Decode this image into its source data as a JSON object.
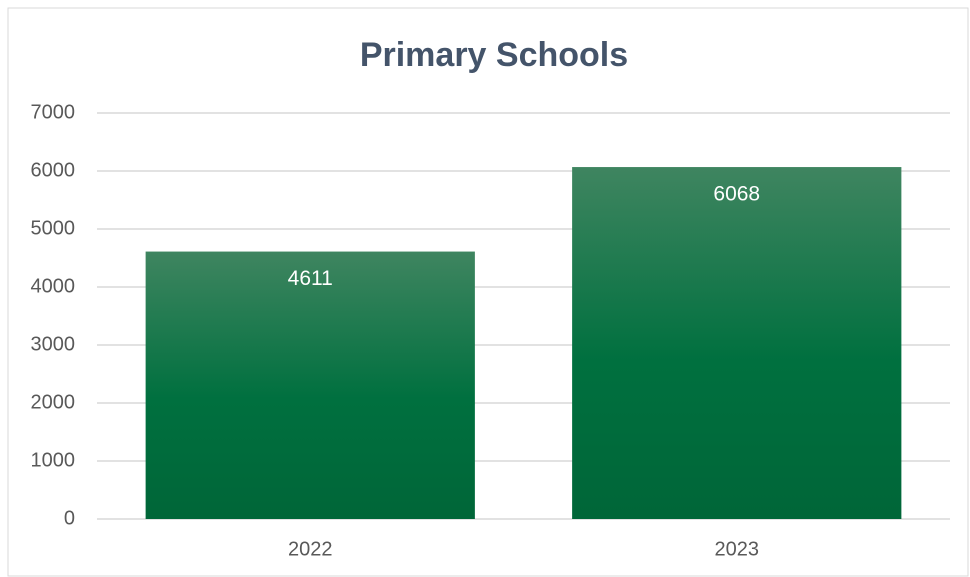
{
  "chart_data": {
    "type": "bar",
    "title": "Primary Schools",
    "categories": [
      "2022",
      "2023"
    ],
    "values": [
      4611,
      6068
    ],
    "color": "#007040",
    "ylim": [
      0,
      7000
    ],
    "yticks": [
      0,
      1000,
      2000,
      3000,
      4000,
      5000,
      6000,
      7000
    ],
    "grid": true,
    "data_labels": true
  }
}
